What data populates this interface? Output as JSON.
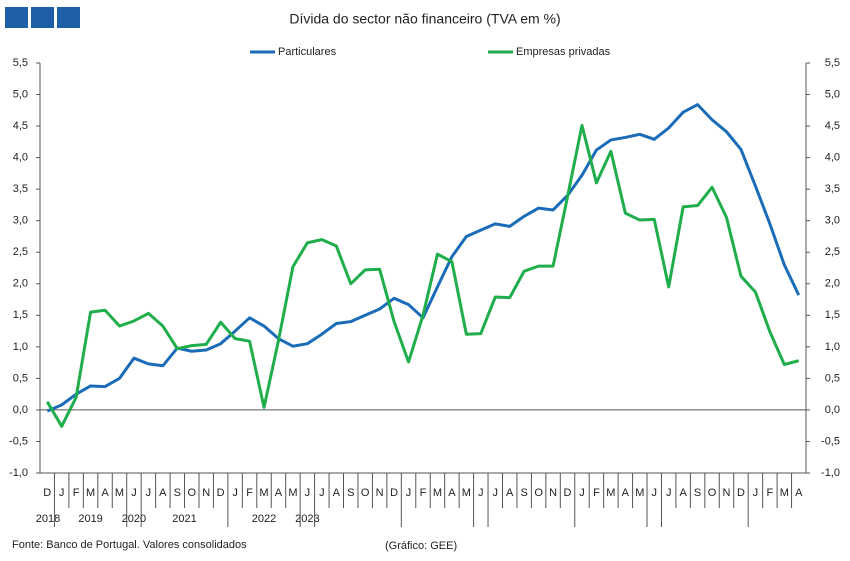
{
  "chart_data": {
    "type": "line",
    "title": "Dívida do sector não financeiro (TVA em %)",
    "categories": [
      "D",
      "J",
      "F",
      "M",
      "A",
      "M",
      "J",
      "J",
      "A",
      "S",
      "O",
      "N",
      "D",
      "J",
      "F",
      "M",
      "A",
      "M",
      "J",
      "J",
      "A",
      "S",
      "O",
      "N",
      "D",
      "J",
      "F",
      "M",
      "A",
      "M",
      "J",
      "J",
      "A",
      "S",
      "O",
      "N",
      "D",
      "J",
      "F",
      "M",
      "A",
      "M",
      "J",
      "J",
      "A",
      "S",
      "O",
      "N",
      "D",
      "J",
      "F",
      "M",
      "A"
    ],
    "years": [
      "2018",
      "2019",
      "2020",
      "2021",
      "2022",
      "2023"
    ],
    "series": [
      {
        "name": "Particulares",
        "color": "#1b6cb8",
        "values": [
          -0.02,
          0.08,
          0.25,
          0.38,
          0.37,
          0.5,
          0.82,
          0.73,
          0.7,
          0.98,
          0.93,
          0.95,
          1.05,
          1.25,
          1.46,
          1.33,
          1.13,
          1.01,
          1.05,
          1.2,
          1.37,
          1.4,
          1.5,
          1.6,
          1.77,
          1.67,
          1.46,
          1.95,
          2.43,
          2.75,
          2.85,
          2.95,
          2.91,
          3.07,
          3.2,
          3.17,
          3.4,
          3.72,
          4.12,
          4.28,
          4.32,
          4.37,
          4.29,
          4.47,
          4.72,
          4.84,
          4.6,
          4.41,
          4.13,
          3.55,
          2.95,
          2.3,
          1.82
        ]
      },
      {
        "name": "Empresas privadas",
        "color": "#1fae4b",
        "values": [
          0.13,
          -0.26,
          0.2,
          1.55,
          1.58,
          1.33,
          1.41,
          1.53,
          1.33,
          0.97,
          1.02,
          1.04,
          1.39,
          1.13,
          1.09,
          0.04,
          1.1,
          2.27,
          2.65,
          2.7,
          2.6,
          2.0,
          2.22,
          2.23,
          1.4,
          0.76,
          1.5,
          2.47,
          2.35,
          1.2,
          1.21,
          1.79,
          1.78,
          2.2,
          2.28,
          2.28,
          3.38,
          4.51,
          3.6,
          4.1,
          3.12,
          3.01,
          3.02,
          1.95,
          3.22,
          3.24,
          3.53,
          3.05,
          2.12,
          1.87,
          1.24,
          0.72,
          0.78
        ]
      }
    ],
    "ylim": [
      -1,
      5.5
    ],
    "yticks": [
      {
        "value": -1,
        "label": "-1,0"
      },
      {
        "value": -0.5,
        "label": "-0,5"
      },
      {
        "value": 0,
        "label": "0,0"
      },
      {
        "value": 0.5,
        "label": "0,5"
      },
      {
        "value": 1,
        "label": "1,0"
      },
      {
        "value": 1.5,
        "label": "1,5"
      },
      {
        "value": 2,
        "label": "2,0"
      },
      {
        "value": 2.5,
        "label": "2,5"
      },
      {
        "value": 3,
        "label": "3,0"
      },
      {
        "value": 3.5,
        "label": "3,5"
      },
      {
        "value": 4,
        "label": "4,0"
      },
      {
        "value": 4.5,
        "label": "4,5"
      },
      {
        "value": 5,
        "label": "5,0"
      },
      {
        "value": 5.5,
        "label": "5,5"
      }
    ],
    "y2lim": [
      -1,
      5.5
    ],
    "y2ticks": [
      {
        "value": -1,
        "label": "-1,0"
      },
      {
        "value": -0.5,
        "label": "-0,5"
      },
      {
        "value": 0,
        "label": "0,0"
      },
      {
        "value": 0.5,
        "label": "0,5"
      },
      {
        "value": 1,
        "label": "1,0"
      },
      {
        "value": 1.5,
        "label": "1,5"
      },
      {
        "value": 2,
        "label": "2,0"
      },
      {
        "value": 2.5,
        "label": "2,5"
      },
      {
        "value": 3,
        "label": "3,0"
      },
      {
        "value": 3.5,
        "label": "3,5"
      },
      {
        "value": 4,
        "label": "4,0"
      },
      {
        "value": 4.5,
        "label": "4,5"
      },
      {
        "value": 5,
        "label": "5,0"
      },
      {
        "value": 5.5,
        "label": "5,5"
      }
    ],
    "source": "Fonte: Banco de Portugal. Valores consolidados",
    "credit": "(Gráfico: GEE)"
  }
}
